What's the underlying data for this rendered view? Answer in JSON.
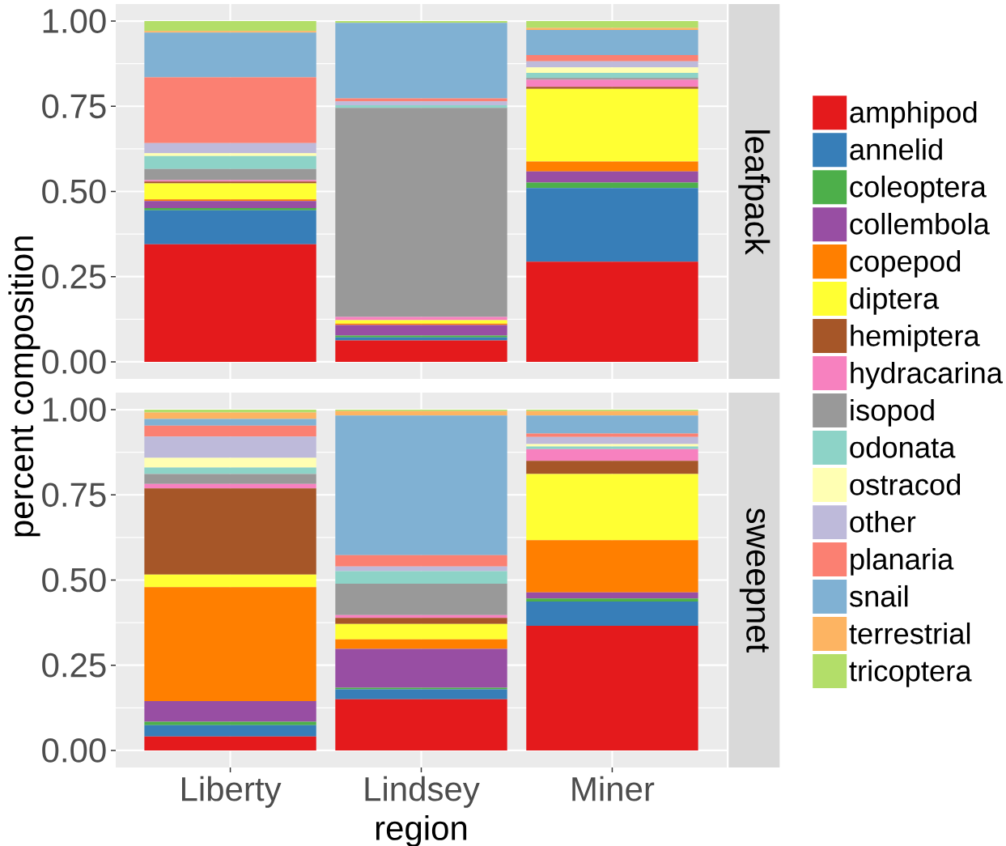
{
  "chart_data": [
    {
      "type": "bar",
      "stacked": true,
      "title": "leafpack",
      "ylabel": "percent composition",
      "categories": [
        null,
        null,
        null
      ],
      "tick_labels": "y",
      "grid": true,
      "legend": "right",
      "ylim": [
        -0.05,
        1.05
      ],
      "yticks": [
        {
          "value": 0,
          "label": "0.00"
        },
        {
          "value": 0.25,
          "label": "0.25"
        },
        {
          "value": 0.5,
          "label": "0.50"
        },
        {
          "value": 0.75,
          "label": "0.75"
        },
        {
          "value": 1,
          "label": "1.00"
        }
      ],
      "series": [
        {
          "name": "amphipod",
          "color": "#e41a1c",
          "values": [
            0.345,
            0.063,
            0.294
          ]
        },
        {
          "name": "annelid",
          "color": "#377eb8",
          "values": [
            0.1,
            0.009,
            0.216
          ]
        },
        {
          "name": "coleoptera",
          "color": "#4daf4a",
          "values": [
            0.006,
            0.005,
            0.016
          ]
        },
        {
          "name": "collembola",
          "color": "#984ea3",
          "values": [
            0.021,
            0.031,
            0.033
          ]
        },
        {
          "name": "copepod",
          "color": "#ff7f00",
          "values": [
            0.005,
            0.004,
            0.029
          ]
        },
        {
          "name": "diptera",
          "color": "#ffff33",
          "values": [
            0.047,
            0.01,
            0.213
          ]
        },
        {
          "name": "hemiptera",
          "color": "#a65628",
          "values": [
            0.005,
            0,
            0.006
          ]
        },
        {
          "name": "hydracarina",
          "color": "#f781bf",
          "values": [
            0.004,
            0.01,
            0.021
          ]
        },
        {
          "name": "isopod",
          "color": "#999999",
          "values": [
            0.033,
            0.613,
            0.005
          ]
        },
        {
          "name": "odonata",
          "color": "#8dd3c7",
          "values": [
            0.038,
            0.008,
            0.015
          ]
        },
        {
          "name": "ostracod",
          "color": "#ffffb3",
          "values": [
            0.008,
            0,
            0.016
          ]
        },
        {
          "name": "other",
          "color": "#bebada",
          "values": [
            0.03,
            0.011,
            0.018
          ]
        },
        {
          "name": "planaria",
          "color": "#fb8072",
          "values": [
            0.193,
            0.009,
            0.018
          ]
        },
        {
          "name": "snail",
          "color": "#80b1d3",
          "values": [
            0.131,
            0.222,
            0.074
          ]
        },
        {
          "name": "terrestrial",
          "color": "#fdb462",
          "values": [
            0.005,
            0,
            0.006
          ]
        },
        {
          "name": "tricoptera",
          "color": "#b3de69",
          "values": [
            0.029,
            0.005,
            0.02
          ]
        }
      ]
    },
    {
      "type": "bar",
      "stacked": true,
      "title": "sweepnet",
      "xlabel": "region",
      "categories": [
        "Liberty",
        "Lindsey",
        "Miner"
      ],
      "grid": true,
      "ylim": [
        -0.05,
        1.05
      ],
      "yticks": [
        {
          "value": 0,
          "label": "0.00"
        },
        {
          "value": 0.25,
          "label": "0.25"
        },
        {
          "value": 0.5,
          "label": "0.50"
        },
        {
          "value": 0.75,
          "label": "0.75"
        },
        {
          "value": 1,
          "label": "1.00"
        }
      ],
      "series": [
        {
          "color": "#e41a1c",
          "values": [
            0.041,
            0.15,
            0.366
          ]
        },
        {
          "color": "#377eb8",
          "values": [
            0.033,
            0.029,
            0.071
          ]
        },
        {
          "color": "#4daf4a",
          "values": [
            0.01,
            0.005,
            0.009
          ]
        },
        {
          "color": "#984ea3",
          "values": [
            0.061,
            0.114,
            0.018
          ]
        },
        {
          "color": "#ff7f00",
          "values": [
            0.334,
            0.028,
            0.153
          ]
        },
        {
          "color": "#ffff33",
          "values": [
            0.037,
            0.045,
            0.194
          ]
        },
        {
          "color": "#a65628",
          "values": [
            0.253,
            0.018,
            0.039
          ]
        },
        {
          "color": "#f781bf",
          "values": [
            0.013,
            0.008,
            0.034
          ]
        },
        {
          "color": "#999999",
          "values": [
            0.029,
            0.092,
            0
          ]
        },
        {
          "color": "#8dd3c7",
          "values": [
            0.019,
            0.037,
            0.008
          ]
        },
        {
          "color": "#ffffb3",
          "values": [
            0.029,
            0,
            0.007
          ]
        },
        {
          "color": "#bebada",
          "values": [
            0.062,
            0.014,
            0.021
          ]
        },
        {
          "color": "#fb8072",
          "values": [
            0.032,
            0.033,
            0.01
          ]
        },
        {
          "color": "#80b1d3",
          "values": [
            0.02,
            0.41,
            0.053
          ]
        },
        {
          "color": "#fdb462",
          "values": [
            0.019,
            0.013,
            0.013
          ]
        },
        {
          "color": "#b3de69",
          "values": [
            0.008,
            0.004,
            0.004
          ]
        }
      ]
    }
  ]
}
